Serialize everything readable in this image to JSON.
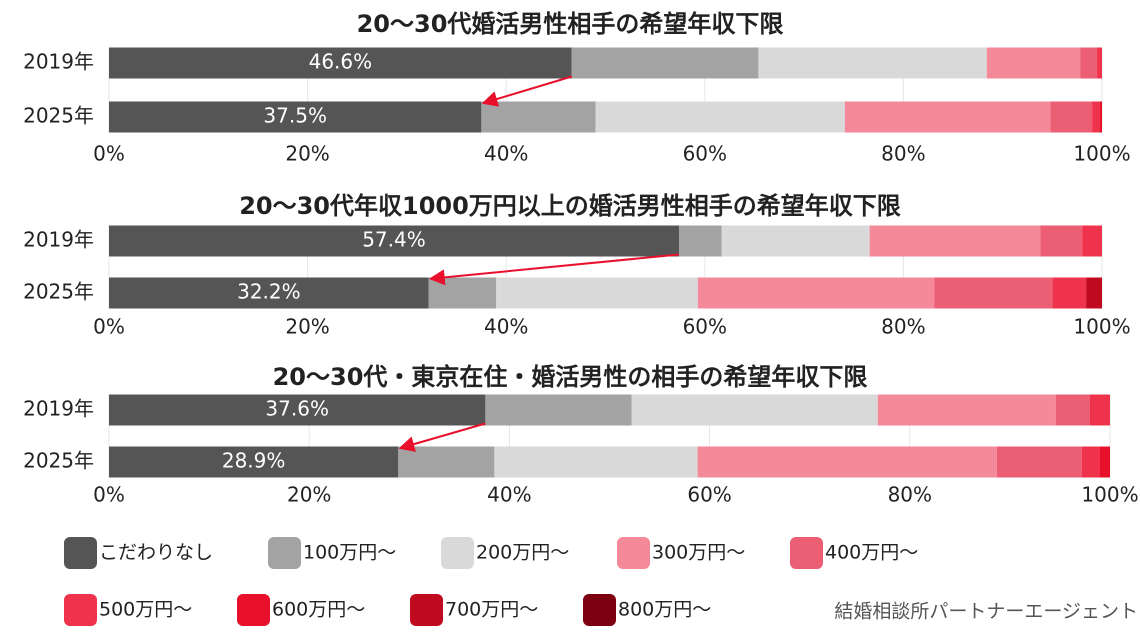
{
  "chart_data": [
    {
      "type": "bar",
      "orientation": "horizontal",
      "stacked": true,
      "title": "20〜30代婚活男性相手の希望年収下限",
      "categories": [
        "2019年",
        "2025年"
      ],
      "series": [
        {
          "name": "こだわりなし",
          "color": "#555555",
          "values": [
            46.6,
            37.5
          ],
          "value_labels": [
            "46.6%",
            "37.5%"
          ]
        },
        {
          "name": "100万円〜",
          "color": "#a3a3a3",
          "values": [
            18.8,
            11.5
          ]
        },
        {
          "name": "200万円〜",
          "color": "#d9d9d9",
          "values": [
            23.0,
            25.1
          ]
        },
        {
          "name": "300万円〜",
          "color": "#f48a99",
          "values": [
            9.4,
            20.7
          ]
        },
        {
          "name": "400万円〜",
          "color": "#ec5e73",
          "values": [
            1.7,
            4.2
          ]
        },
        {
          "name": "500万円〜",
          "color": "#f0334d",
          "values": [
            0.5,
            0.8
          ]
        },
        {
          "name": "600万円〜",
          "color": "#e8102b",
          "values": [
            0,
            0.2
          ]
        },
        {
          "name": "700万円〜",
          "color": "#c00a20",
          "values": [
            0,
            0
          ]
        },
        {
          "name": "800万円〜",
          "color": "#7d0010",
          "values": [
            0,
            0
          ]
        }
      ],
      "xlim": [
        0,
        100
      ],
      "xticks": [
        {
          "value": 0,
          "label": "0%"
        },
        {
          "value": 20,
          "label": "20%"
        },
        {
          "value": 40,
          "label": "40%"
        },
        {
          "value": 60,
          "label": "60%"
        },
        {
          "value": 80,
          "label": "80%"
        },
        {
          "value": 100,
          "label": "100%"
        }
      ],
      "grid": true
    },
    {
      "type": "bar",
      "orientation": "horizontal",
      "stacked": true,
      "title": "20〜30代年収1000万円以上の婚活男性相手の希望年収下限",
      "categories": [
        "2019年",
        "2025年"
      ],
      "series": [
        {
          "color": "#555555",
          "values": [
            57.4,
            32.2
          ],
          "value_labels": [
            "57.4%",
            "32.2%"
          ]
        },
        {
          "color": "#a3a3a3",
          "values": [
            4.3,
            6.8
          ]
        },
        {
          "color": "#d9d9d9",
          "values": [
            14.9,
            20.3
          ]
        },
        {
          "color": "#f48a99",
          "values": [
            17.2,
            23.8
          ]
        },
        {
          "color": "#ec5e73",
          "values": [
            4.2,
            11.9
          ]
        },
        {
          "color": "#f0334d",
          "values": [
            2.0,
            3.4
          ]
        },
        {
          "color": "#e8102b",
          "values": [
            0,
            0
          ]
        },
        {
          "color": "#c00a20",
          "values": [
            0,
            1.6
          ]
        },
        {
          "color": "#7d0010",
          "values": [
            0,
            0
          ]
        }
      ],
      "xlim": [
        0,
        100
      ],
      "xticks": [
        {
          "value": 0,
          "label": "0%"
        },
        {
          "value": 20,
          "label": "20%"
        },
        {
          "value": 40,
          "label": "40%"
        },
        {
          "value": 60,
          "label": "60%"
        },
        {
          "value": 80,
          "label": "80%"
        },
        {
          "value": 100,
          "label": "100%"
        }
      ],
      "grid": true
    },
    {
      "type": "bar",
      "orientation": "horizontal",
      "stacked": true,
      "title": "20〜30代・東京在住・婚活男性の相手の希望年収下限",
      "categories": [
        "2019年",
        "2025年"
      ],
      "series": [
        {
          "color": "#555555",
          "values": [
            37.6,
            28.9
          ],
          "value_labels": [
            "37.6%",
            "28.9%"
          ]
        },
        {
          "color": "#a3a3a3",
          "values": [
            14.6,
            9.6
          ]
        },
        {
          "color": "#d9d9d9",
          "values": [
            24.6,
            20.3
          ]
        },
        {
          "color": "#f48a99",
          "values": [
            17.8,
            29.9
          ]
        },
        {
          "color": "#ec5e73",
          "values": [
            3.4,
            8.5
          ]
        },
        {
          "color": "#f0334d",
          "values": [
            2.0,
            1.8
          ]
        },
        {
          "color": "#e8102b",
          "values": [
            0,
            1.0
          ]
        },
        {
          "color": "#c00a20",
          "values": [
            0,
            0
          ]
        },
        {
          "color": "#7d0010",
          "values": [
            0,
            0
          ]
        }
      ],
      "xlim": [
        0,
        100
      ],
      "xticks": [
        {
          "value": 0,
          "label": "0%"
        },
        {
          "value": 20,
          "label": "20%"
        },
        {
          "value": 40,
          "label": "40%"
        },
        {
          "value": 60,
          "label": "60%"
        },
        {
          "value": 80,
          "label": "80%"
        },
        {
          "value": 100,
          "label": "100%"
        }
      ],
      "grid": true
    }
  ],
  "source": "結婚相談所パートナーエージェント"
}
